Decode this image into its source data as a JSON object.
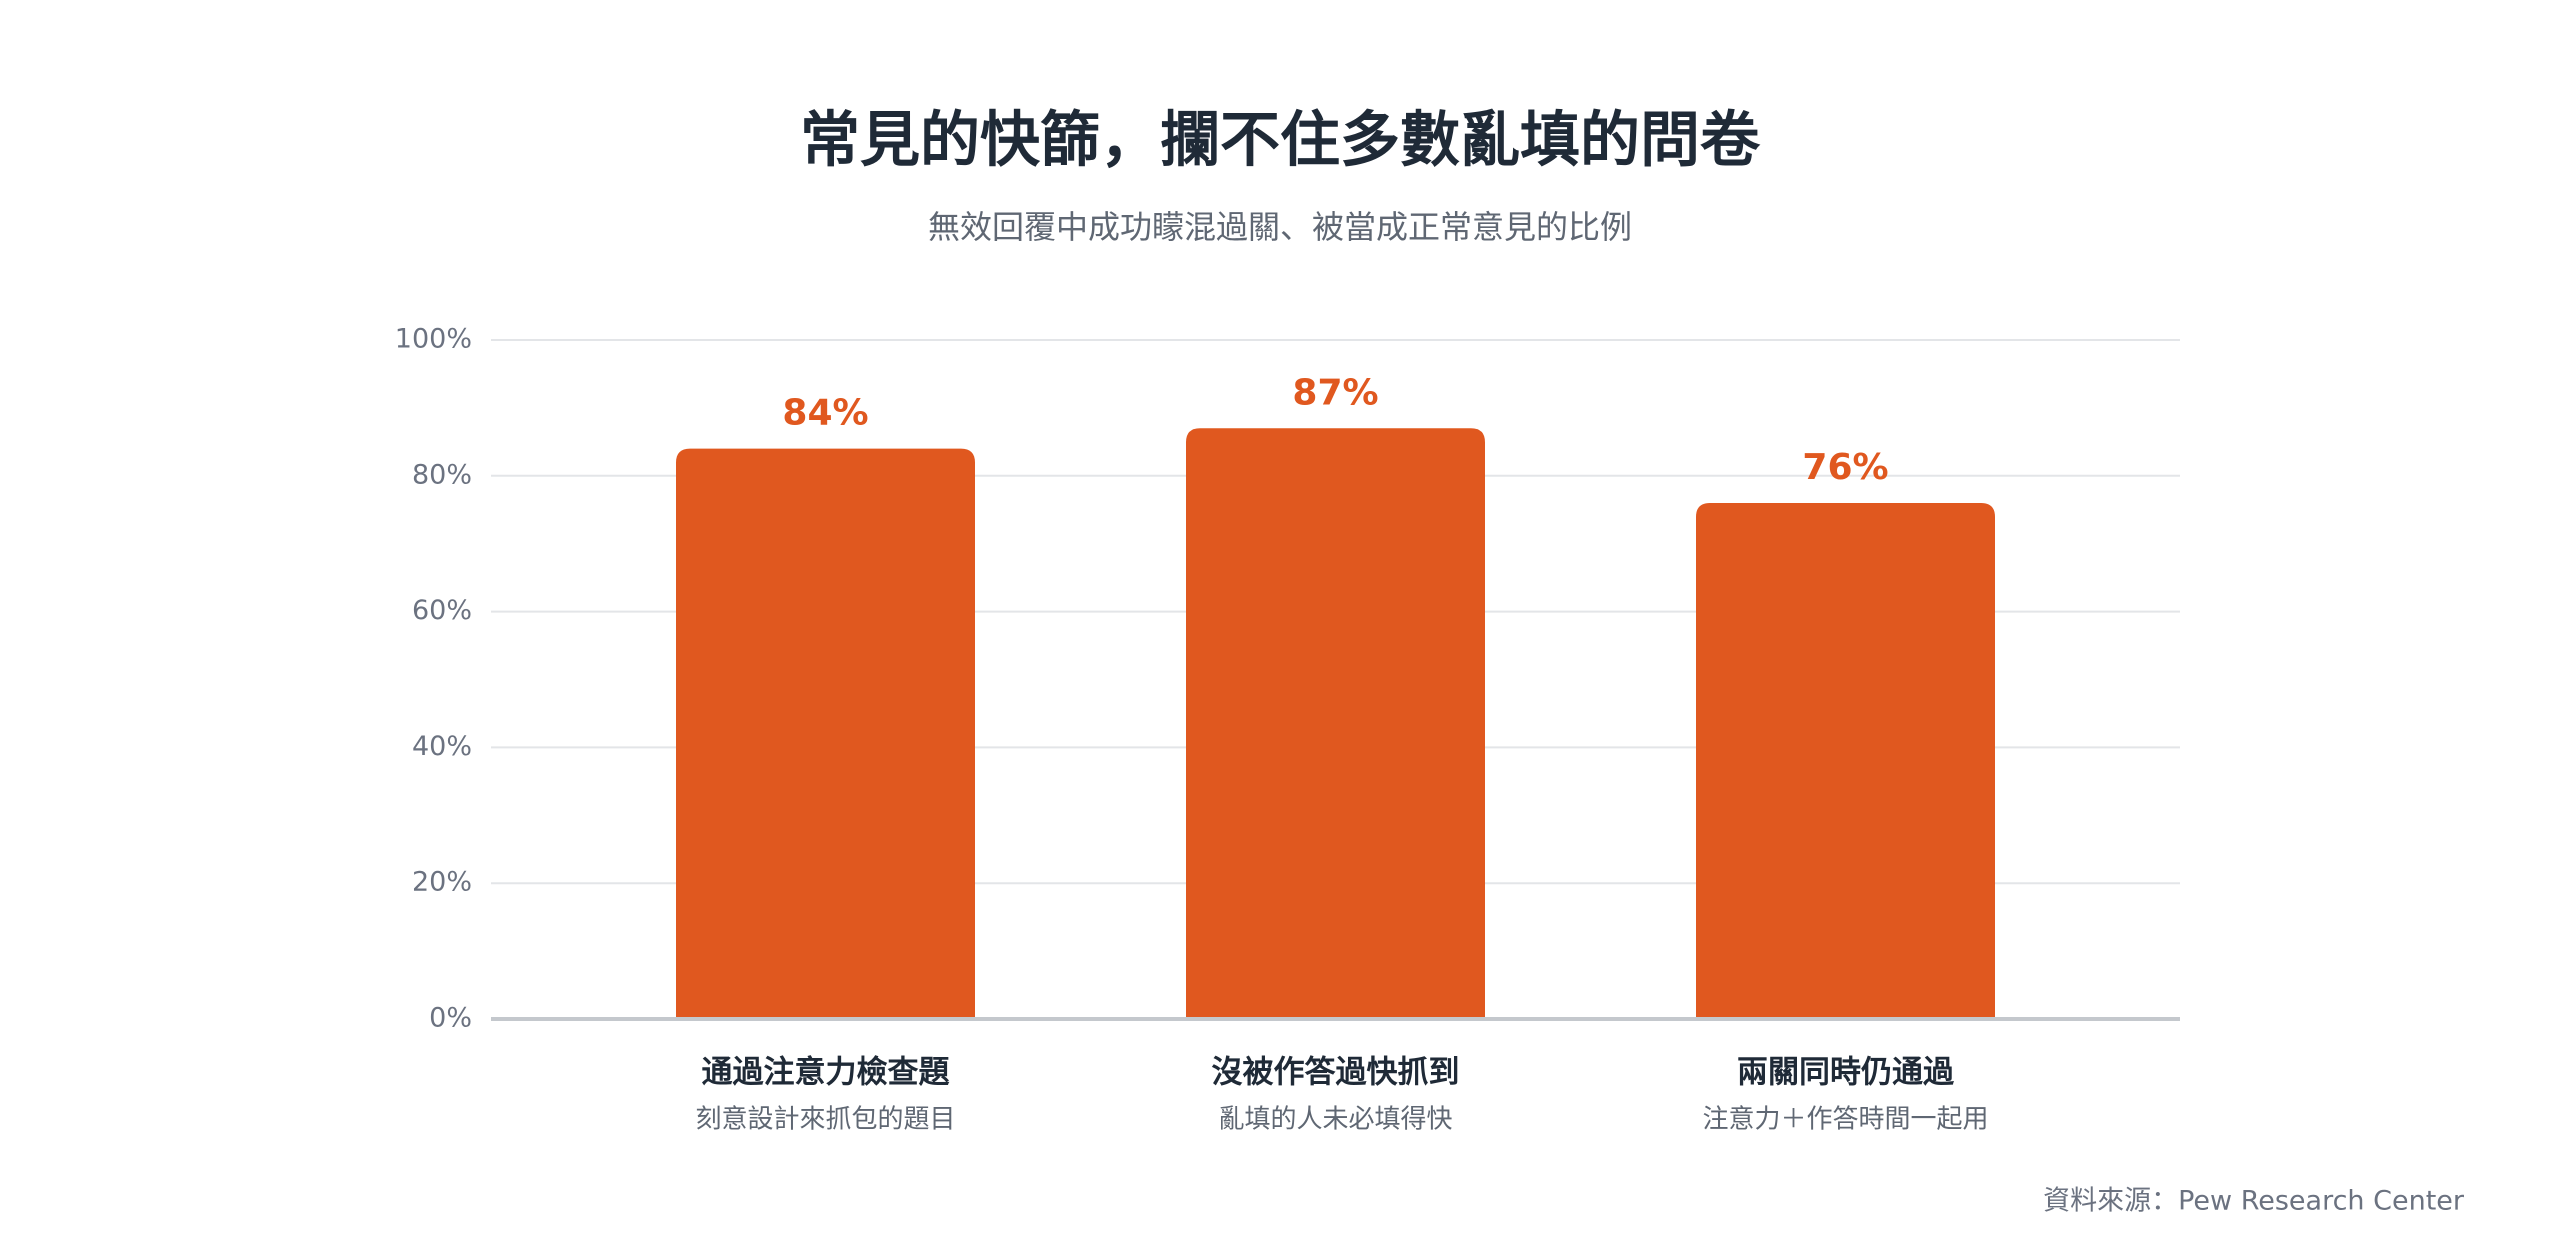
{
  "chart_data": {
    "type": "bar",
    "title": "常見的快篩，攔不住多數亂填的問卷",
    "subtitle": "無效回覆中成功矇混過關、被當成正常意見的比例",
    "categories": [
      "通過注意力檢查題",
      "沒被作答過快抓到",
      "兩關同時仍通過"
    ],
    "category_notes": [
      "刻意設計來抓包的題目",
      "亂填的人未必填得快",
      "注意力＋作答時間一起用"
    ],
    "values": [
      84,
      87,
      76
    ],
    "value_labels": [
      "84%",
      "87%",
      "76%"
    ],
    "color": "#e0581f",
    "ylim": [
      0,
      100
    ],
    "yticks": [
      {
        "value": 0,
        "label": "0%"
      },
      {
        "value": 20,
        "label": "20%"
      },
      {
        "value": 40,
        "label": "40%"
      },
      {
        "value": 60,
        "label": "60%"
      },
      {
        "value": 80,
        "label": "80%"
      },
      {
        "value": 100,
        "label": "100%"
      }
    ],
    "grid": true,
    "source": "資料來源：Pew Research Center"
  }
}
